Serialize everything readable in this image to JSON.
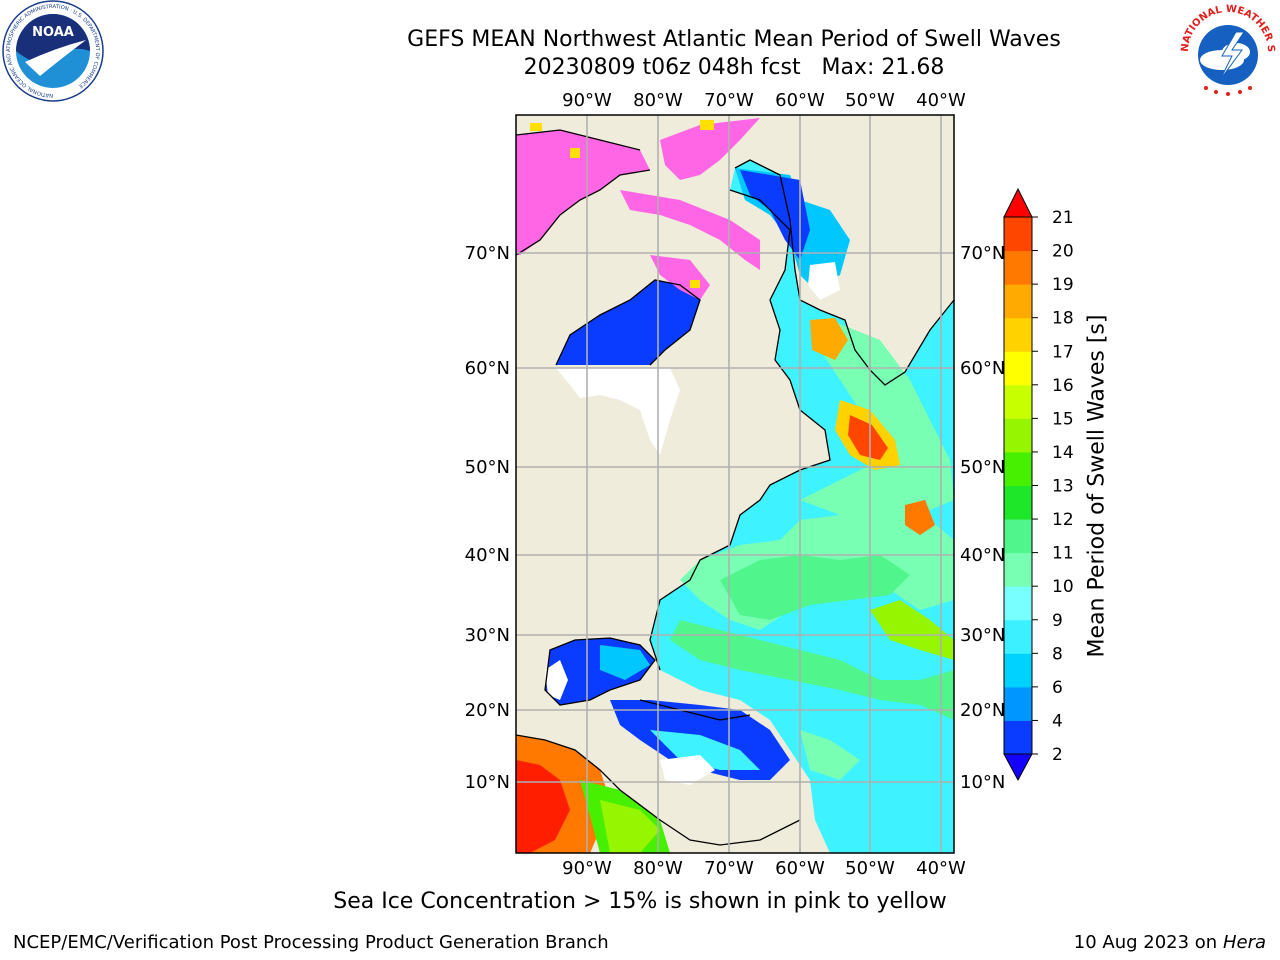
{
  "title": {
    "line1": "GEFS MEAN Northwest Atlantic Mean Period of Swell Waves",
    "line2": "20230809 t06z 048h fcst   Max: 21.68"
  },
  "map": {
    "lon_labels": [
      "90°W",
      "80°W",
      "70°W",
      "60°W",
      "50°W",
      "40°W"
    ],
    "lat_labels": [
      "70°N",
      "60°N",
      "50°N",
      "40°N",
      "30°N",
      "20°N",
      "10°N"
    ],
    "land_color": "#efecdb",
    "grid_color": "#b0b0b0"
  },
  "colorbar": {
    "label": "Mean Period of Swell Waves [s]",
    "ticks": [
      "2",
      "4",
      "6",
      "8",
      "9",
      "10",
      "11",
      "12",
      "13",
      "14",
      "15",
      "16",
      "17",
      "18",
      "19",
      "20",
      "21"
    ],
    "colors": [
      "#0a3cff",
      "#0096ff",
      "#00d2ff",
      "#3cf0ff",
      "#78ffff",
      "#78ffb4",
      "#50f58c",
      "#1ee628",
      "#46f000",
      "#96f500",
      "#c8ff00",
      "#ffff00",
      "#ffd200",
      "#ffaa00",
      "#ff7800",
      "#ff4600",
      "#ff1e00"
    ],
    "under_color": "#1400ff",
    "over_color": "#ff0000"
  },
  "footer": {
    "note": "Sea Ice Concentration > 15% is shown in pink to yellow",
    "credit_left": "NCEP/EMC/Verification Post Processing Product Generation Branch",
    "date": "10 Aug 2023 on",
    "machine": "Hera"
  },
  "logos": {
    "left_text": "NOAA",
    "left_ring": "NATIONAL OCEANIC AND ATMOSPHERIC ADMINISTRATION · U.S. DEPARTMENT OF COMMERCE",
    "right_ring": "NATIONAL WEATHER SERVICE"
  }
}
